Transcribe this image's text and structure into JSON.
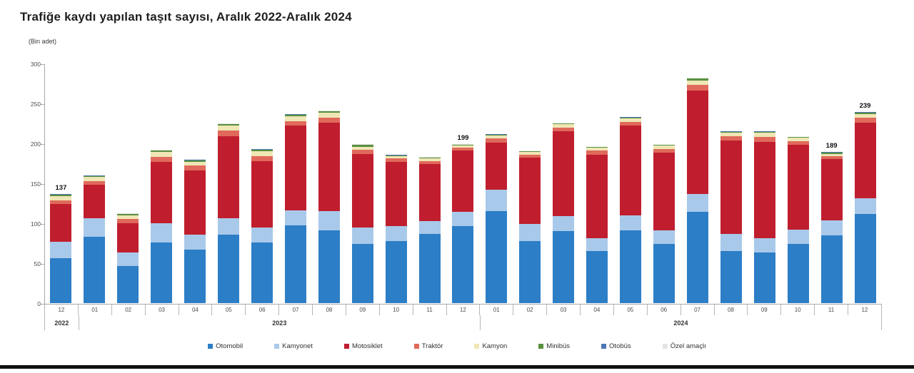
{
  "header": {
    "title": "Trafiğe kaydı yapılan taşıt sayısı, Aralık 2022-Aralık 2024",
    "subtitle": "(Bin adet)"
  },
  "chart_data": {
    "type": "bar",
    "stacked": true,
    "title": "Trafiğe kaydı yapılan taşıt sayısı, Aralık 2022-Aralık 2024",
    "unit_label": "(Bin adet)",
    "grid": false,
    "legend_position": "bottom",
    "ylim": [
      0,
      300
    ],
    "yticks": [
      0,
      50,
      100,
      150,
      200,
      250,
      300
    ],
    "categories": [
      "12",
      "01",
      "02",
      "03",
      "04",
      "05",
      "06",
      "07",
      "08",
      "09",
      "10",
      "11",
      "12",
      "01",
      "02",
      "03",
      "04",
      "05",
      "06",
      "07",
      "08",
      "09",
      "10",
      "11",
      "12"
    ],
    "year_groups": [
      {
        "label": "2022",
        "span": 1
      },
      {
        "label": "2023",
        "span": 12
      },
      {
        "label": "2024",
        "span": 12
      }
    ],
    "total_labels": [
      "137",
      "",
      "",
      "",
      "",
      "",
      "",
      "",
      "",
      "",
      "",
      "",
      "199",
      "",
      "",
      "",
      "",
      "",
      "",
      "",
      "",
      "",
      "",
      "189",
      "239"
    ],
    "series": [
      {
        "name": "Otomobil",
        "color": "#2C7EC6",
        "values": [
          56,
          83,
          46,
          76,
          67,
          86,
          76,
          97,
          91,
          74,
          78,
          87,
          96,
          115,
          78,
          90,
          65,
          91,
          74,
          114,
          65,
          63,
          74,
          85,
          112
        ]
      },
      {
        "name": "Kamyonet",
        "color": "#A9C9EA",
        "values": [
          21,
          23,
          17,
          24,
          19,
          20,
          19,
          19,
          24,
          21,
          18,
          16,
          18,
          27,
          21,
          19,
          16,
          19,
          17,
          23,
          22,
          18,
          18,
          19,
          19
        ]
      },
      {
        "name": "Motosiklet",
        "color": "#C01E2E",
        "values": [
          47,
          42,
          37,
          77,
          80,
          103,
          83,
          106,
          111,
          92,
          81,
          71,
          77,
          59,
          83,
          106,
          105,
          112,
          97,
          129,
          117,
          121,
          106,
          76,
          95
        ]
      },
      {
        "name": "Traktör",
        "color": "#E0695B",
        "values": [
          5,
          5,
          5,
          6,
          6,
          7,
          6,
          6,
          6,
          5,
          4,
          4,
          4,
          5,
          4,
          5,
          5,
          5,
          5,
          7,
          5,
          6,
          5,
          4,
          6
        ]
      },
      {
        "name": "Kamyon",
        "color": "#EFE6B5",
        "values": [
          5,
          5,
          5,
          6,
          5,
          6,
          6,
          6,
          6,
          4,
          3,
          3,
          2,
          4,
          3,
          4,
          4,
          4,
          4,
          6,
          4,
          5,
          4,
          3,
          5
        ]
      },
      {
        "name": "Minibüs",
        "color": "#59903F",
        "values": [
          1.5,
          1,
          1.5,
          2,
          2,
          2,
          2,
          2,
          2,
          2,
          1,
          1,
          1,
          1,
          1,
          1,
          1,
          1.5,
          1,
          2,
          1.5,
          1.5,
          1,
          1.5,
          1.5
        ]
      },
      {
        "name": "Otobüs",
        "color": "#4B77B3",
        "values": [
          1,
          0.5,
          0.5,
          0.5,
          0.5,
          0.5,
          0.5,
          0.5,
          0.5,
          0.5,
          0.5,
          0.5,
          0.5,
          0.5,
          0,
          0,
          0,
          0.5,
          0,
          0.5,
          0.5,
          0.5,
          0,
          0.5,
          0.5
        ]
      },
      {
        "name": "Özel amaçlı",
        "color": "#E4E4E4",
        "values": [
          0.5,
          0.5,
          0.5,
          0.5,
          0.5,
          0.5,
          0.5,
          0.5,
          0.5,
          0.5,
          0.5,
          0.5,
          0.5,
          0.5,
          0,
          0,
          0,
          0,
          0,
          0.5,
          0,
          0,
          0,
          0,
          0
        ]
      }
    ]
  }
}
